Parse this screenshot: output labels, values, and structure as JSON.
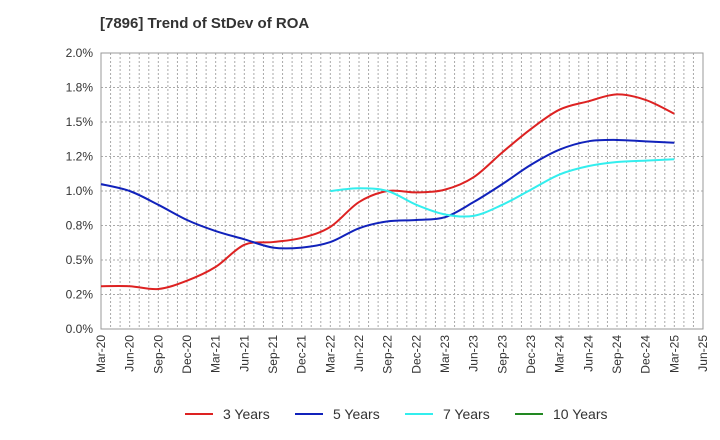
{
  "chart_data": {
    "type": "line",
    "title": "[7896]  Trend of StDev of ROA",
    "xlabel": "",
    "ylabel": "",
    "grid": true,
    "legend_position": "bottom",
    "ylim": [
      0,
      2.0
    ],
    "yticks": [
      "0.0%",
      "0.2%",
      "0.5%",
      "0.8%",
      "1.0%",
      "1.2%",
      "1.5%",
      "1.8%",
      "2.0%"
    ],
    "x_categories": [
      "Mar-20",
      "Jun-20",
      "Sep-20",
      "Dec-20",
      "Mar-21",
      "Jun-21",
      "Sep-21",
      "Dec-21",
      "Mar-22",
      "Jun-22",
      "Sep-22",
      "Dec-22",
      "Mar-23",
      "Jun-23",
      "Sep-23",
      "Dec-23",
      "Mar-24",
      "Jun-24",
      "Sep-24",
      "Dec-24",
      "Mar-25",
      "Jun-25"
    ],
    "series": [
      {
        "name": "3 Years",
        "color": "#dd2222",
        "values": [
          0.31,
          0.31,
          0.29,
          0.35,
          0.45,
          0.61,
          0.63,
          0.66,
          0.74,
          0.92,
          1.0,
          0.99,
          1.01,
          1.1,
          1.28,
          1.45,
          1.59,
          1.65,
          1.7,
          1.66,
          1.56,
          null
        ]
      },
      {
        "name": "5 Years",
        "color": "#1122bb",
        "values": [
          1.05,
          1.0,
          0.9,
          0.79,
          0.71,
          0.65,
          0.59,
          0.59,
          0.63,
          0.73,
          0.78,
          0.79,
          0.81,
          0.92,
          1.05,
          1.19,
          1.3,
          1.36,
          1.37,
          1.36,
          1.35,
          null
        ]
      },
      {
        "name": "7 Years",
        "color": "#33eeee",
        "values": [
          null,
          null,
          null,
          null,
          null,
          null,
          null,
          null,
          1.0,
          1.02,
          1.0,
          0.9,
          0.83,
          0.82,
          0.9,
          1.01,
          1.12,
          1.18,
          1.21,
          1.22,
          1.23,
          null
        ]
      },
      {
        "name": "10 Years",
        "color": "#228822",
        "values": [
          null,
          null,
          null,
          null,
          null,
          null,
          null,
          null,
          null,
          null,
          null,
          null,
          null,
          null,
          null,
          null,
          null,
          null,
          null,
          null,
          null,
          null
        ]
      }
    ]
  }
}
